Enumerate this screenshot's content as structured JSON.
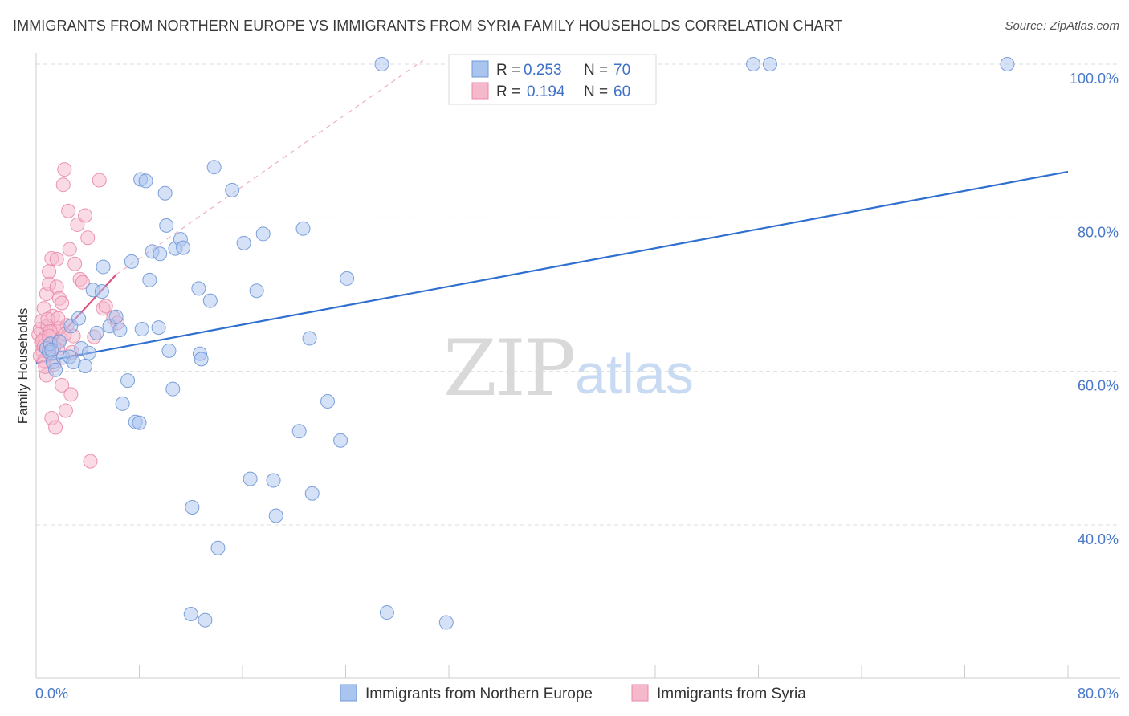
{
  "title": "IMMIGRANTS FROM NORTHERN EUROPE VS IMMIGRANTS FROM SYRIA FAMILY HOUSEHOLDS CORRELATION CHART",
  "source": "Source: ZipAtlas.com",
  "watermark": {
    "zip": "ZIP",
    "atlas": "atlas"
  },
  "colors": {
    "blue_fill": "#a9c4ef",
    "blue_stroke": "#6f97d6",
    "blue_line": "#2f6fcf",
    "pink_fill": "#f6b8cb",
    "pink_stroke": "#e88aa8",
    "pink_line": "#e0527e",
    "grid": "#dddddd",
    "tick_text": "#4a78c8"
  },
  "legend": {
    "rows": [
      {
        "r_label": "R =",
        "r_value": "0.253",
        "n_label": "N =",
        "n_value": "70"
      },
      {
        "r_label": "R =",
        "r_value": "0.194",
        "n_label": "N =",
        "n_value": "60"
      }
    ]
  },
  "chart_data": {
    "type": "scatter",
    "title": "IMMIGRANTS FROM NORTHERN EUROPE VS IMMIGRANTS FROM SYRIA FAMILY HOUSEHOLDS CORRELATION CHART",
    "xlabel": "",
    "ylabel": "Family Households",
    "xlim": [
      0,
      80
    ],
    "ylim": [
      20,
      104
    ],
    "x_tick_labels": [
      "0.0%",
      "80.0%"
    ],
    "y_ticks": [
      40,
      60,
      80,
      100
    ],
    "y_tick_labels": [
      "40.0%",
      "60.0%",
      "80.0%",
      "100.0%"
    ],
    "grid": true,
    "legend_position": "top-center",
    "series": [
      {
        "name": "Immigrants from Northern Europe",
        "color": "blue",
        "points": [
          [
            0.8,
            63.0
          ],
          [
            1.0,
            62.5
          ],
          [
            1.1,
            63.6
          ],
          [
            1.2,
            62.8
          ],
          [
            1.3,
            61.2
          ],
          [
            1.5,
            60.2
          ],
          [
            1.8,
            63.9
          ],
          [
            2.1,
            61.8
          ],
          [
            2.6,
            61.9
          ],
          [
            2.7,
            65.9
          ],
          [
            2.9,
            61.2
          ],
          [
            3.3,
            66.9
          ],
          [
            3.5,
            63.0
          ],
          [
            3.8,
            60.7
          ],
          [
            4.1,
            62.4
          ],
          [
            4.4,
            70.6
          ],
          [
            4.7,
            65.0
          ],
          [
            5.1,
            70.4
          ],
          [
            5.2,
            73.6
          ],
          [
            5.7,
            65.9
          ],
          [
            6.2,
            67.1
          ],
          [
            6.5,
            65.4
          ],
          [
            6.7,
            55.8
          ],
          [
            7.1,
            58.8
          ],
          [
            7.4,
            74.3
          ],
          [
            7.7,
            53.4
          ],
          [
            8.0,
            53.3
          ],
          [
            8.1,
            85.0
          ],
          [
            8.2,
            65.5
          ],
          [
            8.5,
            84.8
          ],
          [
            8.8,
            71.9
          ],
          [
            9.0,
            75.6
          ],
          [
            9.5,
            65.7
          ],
          [
            9.6,
            75.3
          ],
          [
            10.0,
            83.2
          ],
          [
            10.1,
            79.0
          ],
          [
            10.3,
            62.7
          ],
          [
            10.6,
            57.7
          ],
          [
            10.8,
            76.0
          ],
          [
            11.2,
            77.2
          ],
          [
            11.4,
            76.1
          ],
          [
            12.1,
            42.3
          ],
          [
            12.6,
            70.8
          ],
          [
            12.7,
            62.3
          ],
          [
            12.8,
            61.6
          ],
          [
            13.5,
            69.2
          ],
          [
            13.8,
            86.6
          ],
          [
            14.1,
            37.0
          ],
          [
            15.2,
            83.6
          ],
          [
            16.1,
            76.7
          ],
          [
            16.6,
            46.0
          ],
          [
            17.1,
            70.5
          ],
          [
            17.6,
            77.9
          ],
          [
            18.4,
            45.8
          ],
          [
            18.6,
            41.2
          ],
          [
            20.4,
            52.2
          ],
          [
            20.7,
            78.6
          ],
          [
            21.2,
            64.3
          ],
          [
            21.4,
            44.1
          ],
          [
            22.6,
            56.1
          ],
          [
            23.6,
            51.0
          ],
          [
            24.1,
            72.1
          ],
          [
            26.8,
            100.0
          ],
          [
            27.2,
            28.6
          ],
          [
            31.8,
            27.3
          ],
          [
            55.6,
            100.0
          ],
          [
            56.9,
            100.0
          ],
          [
            75.3,
            100.0
          ],
          [
            12.0,
            28.4
          ],
          [
            13.1,
            27.6
          ]
        ],
        "trend": {
          "x": [
            0,
            80
          ],
          "y": [
            61.1,
            86.0
          ]
        }
      },
      {
        "name": "Immigrants from Syria",
        "color": "pink",
        "points": [
          [
            0.2,
            64.8
          ],
          [
            0.3,
            65.5
          ],
          [
            0.4,
            63.8
          ],
          [
            0.4,
            66.5
          ],
          [
            0.5,
            62.7
          ],
          [
            0.6,
            68.2
          ],
          [
            0.6,
            61.4
          ],
          [
            0.7,
            64.4
          ],
          [
            0.8,
            70.1
          ],
          [
            0.8,
            59.5
          ],
          [
            0.9,
            65.9
          ],
          [
            1.0,
            71.4
          ],
          [
            1.0,
            73.0
          ],
          [
            1.1,
            63.6
          ],
          [
            1.2,
            74.7
          ],
          [
            1.2,
            53.9
          ],
          [
            1.3,
            67.2
          ],
          [
            1.3,
            65.1
          ],
          [
            1.4,
            60.9
          ],
          [
            1.5,
            52.7
          ],
          [
            1.6,
            71.0
          ],
          [
            1.6,
            74.6
          ],
          [
            1.7,
            62.9
          ],
          [
            1.8,
            69.5
          ],
          [
            1.8,
            65.6
          ],
          [
            1.9,
            64.3
          ],
          [
            2.0,
            68.9
          ],
          [
            2.0,
            58.2
          ],
          [
            2.1,
            84.3
          ],
          [
            2.2,
            86.3
          ],
          [
            2.3,
            54.9
          ],
          [
            2.4,
            66.0
          ],
          [
            2.5,
            80.9
          ],
          [
            2.6,
            75.9
          ],
          [
            2.7,
            57.0
          ],
          [
            2.8,
            62.5
          ],
          [
            2.9,
            64.6
          ],
          [
            3.0,
            74.0
          ],
          [
            3.2,
            79.1
          ],
          [
            3.4,
            72.0
          ],
          [
            3.6,
            71.6
          ],
          [
            3.8,
            80.3
          ],
          [
            4.0,
            77.4
          ],
          [
            4.2,
            48.3
          ],
          [
            4.5,
            64.5
          ],
          [
            4.9,
            84.9
          ],
          [
            5.2,
            68.2
          ],
          [
            5.4,
            68.5
          ],
          [
            6.0,
            67.0
          ],
          [
            6.3,
            66.3
          ],
          [
            0.3,
            62.0
          ],
          [
            0.5,
            64.0
          ],
          [
            0.7,
            60.6
          ],
          [
            0.9,
            66.8
          ],
          [
            1.1,
            65.2
          ],
          [
            1.4,
            63.2
          ],
          [
            1.7,
            66.9
          ],
          [
            2.2,
            64.8
          ],
          [
            0.6,
            63.3
          ],
          [
            1.0,
            64.6
          ]
        ],
        "trend": {
          "x": [
            0,
            6.2
          ],
          "y": [
            61.3,
            72.6
          ]
        },
        "trend_extension": {
          "x": [
            6.2,
            30
          ],
          "y": [
            72.6,
            100.5
          ]
        }
      }
    ]
  },
  "bottom_legend": {
    "items": [
      "Immigrants from Northern Europe",
      "Immigrants from Syria"
    ]
  }
}
